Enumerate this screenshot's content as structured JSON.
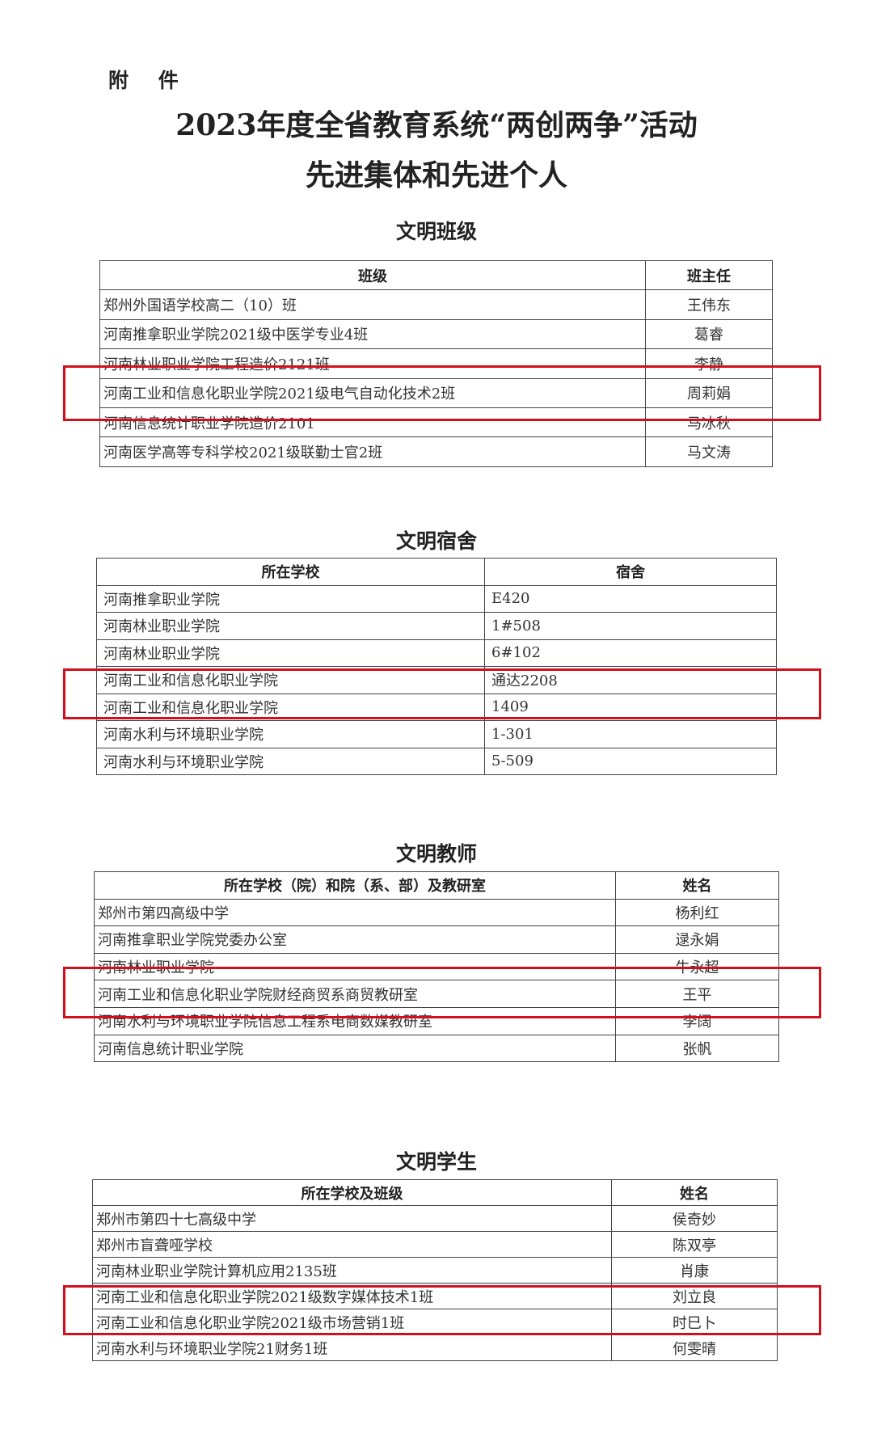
{
  "attachment_label": "附 件",
  "title_line1": "2023年度全省教育系统“两创两争”活动",
  "title_line2": "先进集体和先进个人",
  "highlight_color": "#d0101c",
  "sections": [
    {
      "title": "文明班级",
      "headers": [
        "班级",
        "班主任"
      ],
      "rows": [
        [
          "郑州外国语学校高二（10）班",
          "王伟东"
        ],
        [
          "河南推拿职业学院2021级中医学专业4班",
          "葛睿"
        ],
        [
          "河南林业职业学院工程造价2121班",
          "李静"
        ],
        [
          "河南工业和信息化职业学院2021级电气自动化技术2班",
          "周莉娟"
        ],
        [
          "河南信息统计职业学院造价2101",
          "马冰秋"
        ],
        [
          "河南医学高等专科学校2021级联勤士官2班",
          "马文涛"
        ]
      ]
    },
    {
      "title": "文明宿舍",
      "headers": [
        "所在学校",
        "宿舍"
      ],
      "rows": [
        [
          "河南推拿职业学院",
          "E420"
        ],
        [
          "河南林业职业学院",
          "1#508"
        ],
        [
          "河南林业职业学院",
          "6#102"
        ],
        [
          "河南工业和信息化职业学院",
          "通达2208"
        ],
        [
          "河南工业和信息化职业学院",
          "1409"
        ],
        [
          "河南水利与环境职业学院",
          "1-301"
        ],
        [
          "河南水利与环境职业学院",
          "5-509"
        ]
      ]
    },
    {
      "title": "文明教师",
      "headers": [
        "所在学校（院）和院（系、部）及教研室",
        "姓名"
      ],
      "rows": [
        [
          "郑州市第四高级中学",
          "杨利红"
        ],
        [
          "河南推拿职业学院党委办公室",
          "逯永娟"
        ],
        [
          "河南林业职业学院",
          "牛永超"
        ],
        [
          "河南工业和信息化职业学院财经商贸系商贸教研室",
          "王平"
        ],
        [
          "河南水利与环境职业学院信息工程系电商数媒教研室",
          "李阔"
        ],
        [
          "河南信息统计职业学院",
          "张帆"
        ]
      ]
    },
    {
      "title": "文明学生",
      "headers": [
        "所在学校及班级",
        "姓名"
      ],
      "rows": [
        [
          "郑州市第四十七高级中学",
          "侯奇妙"
        ],
        [
          "郑州市盲聋哑学校",
          "陈双亭"
        ],
        [
          "河南林业职业学院计算机应用2135班",
          "肖康"
        ],
        [
          "河南工业和信息化职业学院2021级数字媒体技术1班",
          "刘立良"
        ],
        [
          "河南工业和信息化职业学院2021级市场营销1班",
          "时巳卜"
        ],
        [
          "河南水利与环境职业学院21财务1班",
          "何雯晴"
        ]
      ]
    }
  ]
}
